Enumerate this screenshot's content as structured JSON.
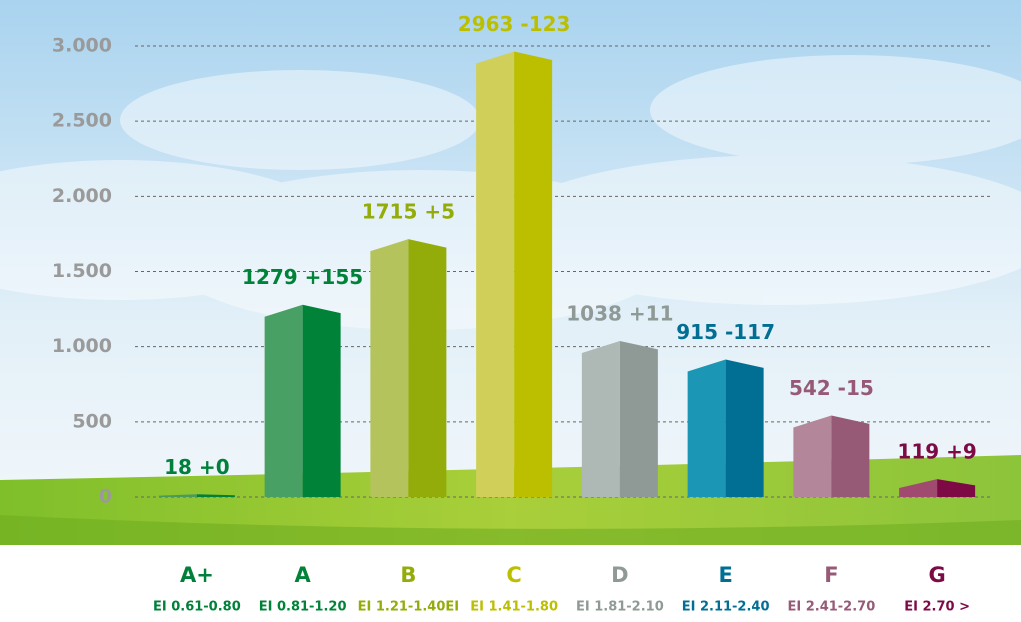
{
  "chart_data": {
    "type": "bar3d",
    "categories": [
      "A+",
      "A",
      "B",
      "C",
      "D",
      "E",
      "F",
      "G"
    ],
    "sublabels": [
      "EI 0.61-0.80",
      "EI 0.81-1.20",
      "EI 1.21-1.40EI",
      "EI 1.41-1.80",
      "EI 1.81-2.10",
      "EI 2.11-2.40",
      "EI 2.41-2.70",
      "EI 2.70 >"
    ],
    "values": [
      18,
      1279,
      1715,
      2963,
      1038,
      915,
      542,
      119
    ],
    "value_labels": [
      "18 +0",
      "1279 +155",
      "1715 +5",
      "2963 -123",
      "1038 +11",
      "915 -117",
      "542 -15",
      "119 +9"
    ],
    "colors": [
      "#00803a",
      "#008238",
      "#94ac0a",
      "#bcbf00",
      "#8f9a96",
      "#006f93",
      "#965a76",
      "#7d0a45"
    ],
    "light_colors": [
      "#4a9a5e",
      "#48a064",
      "#b5c35c",
      "#d0cf5a",
      "#aeb8b4",
      "#1b96b5",
      "#b3869a",
      "#a04a70"
    ],
    "ylim": [
      0,
      3000
    ],
    "yticks": [
      0,
      500,
      {
        "value": 1000,
        "label": "1.000"
      },
      {
        "value": 1500,
        "label": "1.500"
      },
      {
        "value": 2000,
        "label": "2.000"
      },
      {
        "value": 2500,
        "label": "2.500"
      },
      {
        "value": 3000,
        "label": "3.000"
      }
    ],
    "grid": true
  }
}
